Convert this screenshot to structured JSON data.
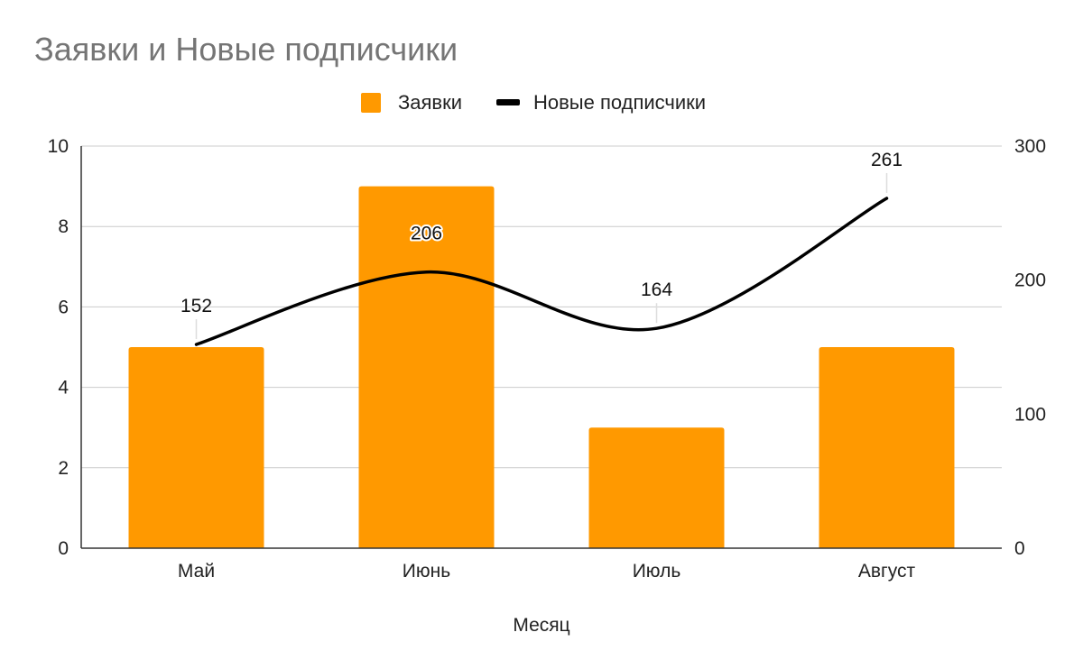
{
  "chart_data": {
    "type": "bar",
    "title": "Заявки и Новые подписчики",
    "xlabel": "Месяц",
    "categories": [
      "Май",
      "Июнь",
      "Июль",
      "Август"
    ],
    "series": [
      {
        "name": "Заявки",
        "type": "bar",
        "axis": "left",
        "color": "#ff9900",
        "values": [
          5,
          9,
          3,
          5
        ]
      },
      {
        "name": "Новые подписчики",
        "type": "line",
        "smooth": true,
        "axis": "right",
        "color": "#000000",
        "values": [
          152,
          206,
          164,
          261
        ],
        "data_labels": [
          "152",
          "206",
          "164",
          "261"
        ]
      }
    ],
    "y_left": {
      "range": [
        0,
        10
      ],
      "ticks": [
        "0",
        "2",
        "4",
        "6",
        "8",
        "10"
      ]
    },
    "y_right": {
      "range": [
        0,
        300
      ],
      "ticks": [
        "0",
        "100",
        "200",
        "300"
      ]
    },
    "grid": true,
    "legend_position": "top"
  }
}
